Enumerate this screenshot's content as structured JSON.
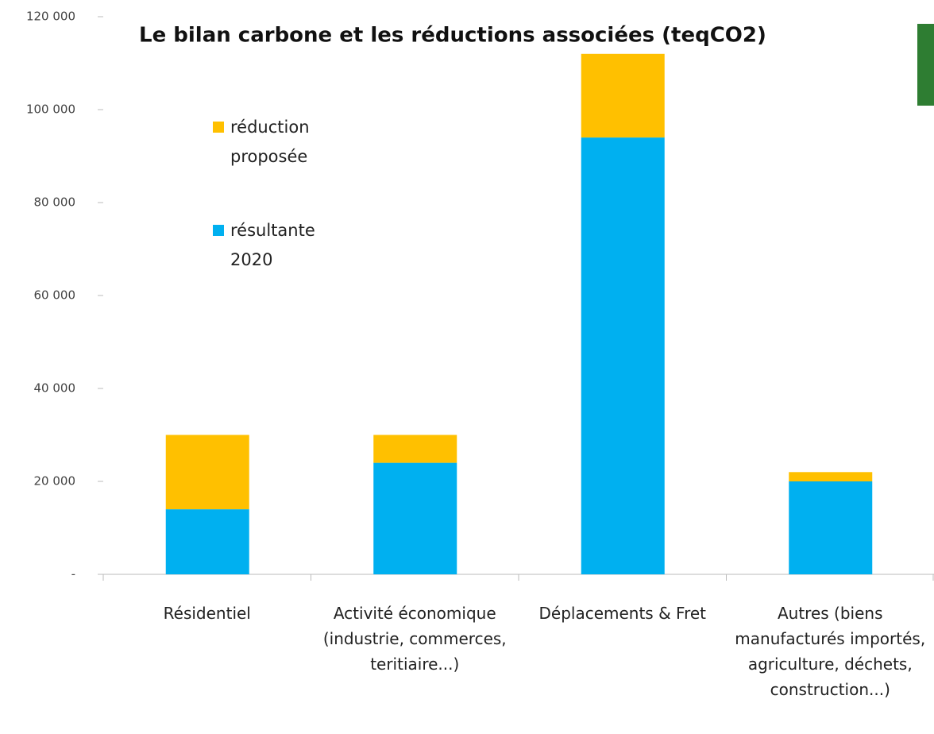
{
  "chart_data": {
    "type": "stacked_bar",
    "title": "Le bilan carbone et les réductions associées (teqCO2)",
    "categories": [
      "Résidentiel",
      "Activité économique (industrie, commerces, teritiaire...)",
      "Déplacements & Fret",
      "Autres (biens manufacturés importés, agriculture, déchets, construction...)"
    ],
    "series": [
      {
        "name": "résultante 2020",
        "color": "#00b0f0",
        "values": [
          14000,
          24000,
          94000,
          20000
        ]
      },
      {
        "name": "réduction proposée",
        "color": "#ffc000",
        "values": [
          16000,
          6000,
          18000,
          2000
        ]
      }
    ],
    "ylim": [
      0,
      120000
    ],
    "yticks": [
      {
        "value": 0,
        "label": "-"
      },
      {
        "value": 20000,
        "label": "20 000"
      },
      {
        "value": 40000,
        "label": "40 000"
      },
      {
        "value": 60000,
        "label": "60 000"
      },
      {
        "value": 80000,
        "label": "80 000"
      },
      {
        "value": 100000,
        "label": "100 000"
      },
      {
        "value": 120000,
        "label": "120 000"
      }
    ],
    "grid": false
  }
}
